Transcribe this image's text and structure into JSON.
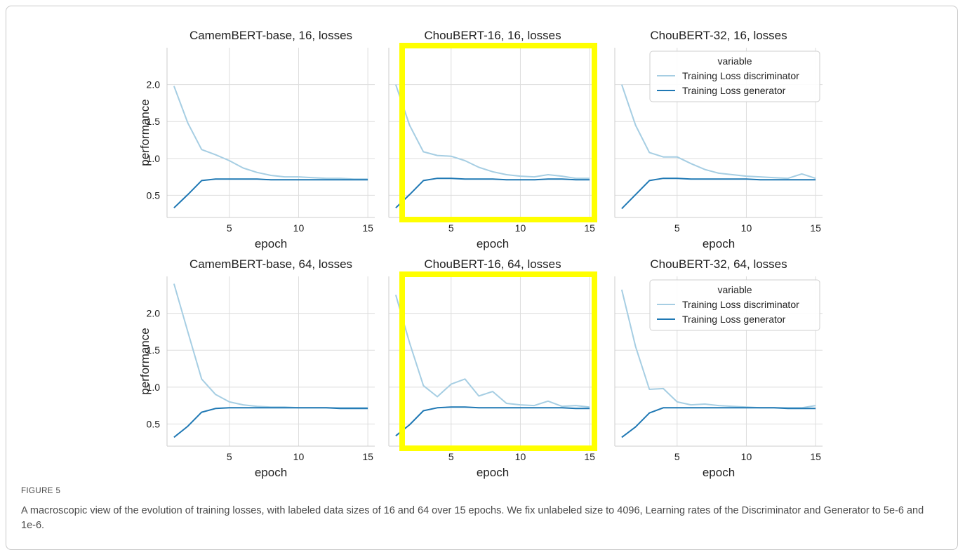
{
  "caption": {
    "label": "FIGURE 5",
    "text": "A macroscopic view of the evolution of training losses, with labeled data sizes of 16 and 64 over 15 epochs. We fix unlabeled size to 4096, Learning rates of the Discriminator and Generator to 5e-6 and 1e-6."
  },
  "colors": {
    "discriminator": "#a6cee3",
    "generator": "#1f78b4",
    "grid": "#dddddd",
    "highlight": "#ffff00"
  },
  "chart_data": [
    {
      "type": "line",
      "title": "CamemBERT-base, 16, losses",
      "xlabel": "epoch",
      "ylabel": "performance",
      "xticks": [
        5,
        10,
        15
      ],
      "yticks": [
        "0.5",
        "1.0",
        "1.5",
        "2.0"
      ],
      "legend": false,
      "highlighted": false,
      "series": [
        {
          "key": "discriminator",
          "x": [
            1,
            2,
            3,
            4,
            5,
            6,
            7,
            8,
            9,
            10,
            11,
            12,
            13,
            14,
            15
          ],
          "values": [
            1.98,
            1.48,
            1.12,
            1.05,
            0.97,
            0.87,
            0.81,
            0.77,
            0.75,
            0.75,
            0.74,
            0.73,
            0.73,
            0.72,
            0.72
          ]
        },
        {
          "key": "generator",
          "x": [
            1,
            2,
            3,
            4,
            5,
            6,
            7,
            8,
            9,
            10,
            11,
            12,
            13,
            14,
            15
          ],
          "values": [
            0.33,
            0.51,
            0.7,
            0.72,
            0.72,
            0.72,
            0.72,
            0.71,
            0.71,
            0.71,
            0.71,
            0.71,
            0.71,
            0.71,
            0.71
          ]
        }
      ]
    },
    {
      "type": "line",
      "title": "ChouBERT-16, 16, losses",
      "xlabel": "epoch",
      "ylabel": "",
      "xticks": [
        5,
        10,
        15
      ],
      "yticks": [],
      "legend": false,
      "highlighted": true,
      "series": [
        {
          "key": "discriminator",
          "x": [
            1,
            2,
            3,
            4,
            5,
            6,
            7,
            8,
            9,
            10,
            11,
            12,
            13,
            14,
            15
          ],
          "values": [
            2.0,
            1.45,
            1.09,
            1.04,
            1.03,
            0.97,
            0.88,
            0.82,
            0.78,
            0.76,
            0.75,
            0.78,
            0.76,
            0.73,
            0.73
          ]
        },
        {
          "key": "generator",
          "x": [
            1,
            2,
            3,
            4,
            5,
            6,
            7,
            8,
            9,
            10,
            11,
            12,
            13,
            14,
            15
          ],
          "values": [
            0.33,
            0.51,
            0.7,
            0.73,
            0.73,
            0.72,
            0.72,
            0.72,
            0.71,
            0.71,
            0.71,
            0.72,
            0.72,
            0.71,
            0.71
          ]
        }
      ]
    },
    {
      "type": "line",
      "title": "ChouBERT-32, 16, losses",
      "xlabel": "epoch",
      "ylabel": "",
      "xticks": [
        5,
        10,
        15
      ],
      "yticks": [],
      "legend": true,
      "legend_position": "top-right",
      "highlighted": false,
      "series": [
        {
          "key": "discriminator",
          "x": [
            1,
            2,
            3,
            4,
            5,
            6,
            7,
            8,
            9,
            10,
            11,
            12,
            13,
            14,
            15
          ],
          "values": [
            2.0,
            1.45,
            1.08,
            1.02,
            1.02,
            0.93,
            0.85,
            0.8,
            0.78,
            0.76,
            0.75,
            0.74,
            0.73,
            0.79,
            0.73
          ]
        },
        {
          "key": "generator",
          "x": [
            1,
            2,
            3,
            4,
            5,
            6,
            7,
            8,
            9,
            10,
            11,
            12,
            13,
            14,
            15
          ],
          "values": [
            0.32,
            0.51,
            0.7,
            0.73,
            0.73,
            0.72,
            0.72,
            0.72,
            0.72,
            0.72,
            0.71,
            0.71,
            0.71,
            0.71,
            0.71
          ]
        }
      ]
    },
    {
      "type": "line",
      "title": "CamemBERT-base, 64, losses",
      "xlabel": "epoch",
      "ylabel": "performance",
      "xticks": [
        5,
        10,
        15
      ],
      "yticks": [
        "0.5",
        "1.0",
        "1.5",
        "2.0"
      ],
      "legend": false,
      "highlighted": false,
      "series": [
        {
          "key": "discriminator",
          "x": [
            1,
            2,
            3,
            4,
            5,
            6,
            7,
            8,
            9,
            10,
            11,
            12,
            13,
            14,
            15
          ],
          "values": [
            2.4,
            1.75,
            1.11,
            0.9,
            0.8,
            0.76,
            0.74,
            0.73,
            0.73,
            0.72,
            0.72,
            0.72,
            0.72,
            0.72,
            0.72
          ]
        },
        {
          "key": "generator",
          "x": [
            1,
            2,
            3,
            4,
            5,
            6,
            7,
            8,
            9,
            10,
            11,
            12,
            13,
            14,
            15
          ],
          "values": [
            0.32,
            0.47,
            0.66,
            0.71,
            0.72,
            0.72,
            0.72,
            0.72,
            0.72,
            0.72,
            0.72,
            0.72,
            0.71,
            0.71,
            0.71
          ]
        }
      ]
    },
    {
      "type": "line",
      "title": "ChouBERT-16, 64, losses",
      "xlabel": "epoch",
      "ylabel": "",
      "xticks": [
        5,
        10,
        15
      ],
      "yticks": [],
      "legend": false,
      "highlighted": true,
      "series": [
        {
          "key": "discriminator",
          "x": [
            1,
            2,
            3,
            4,
            5,
            6,
            7,
            8,
            9,
            10,
            11,
            12,
            13,
            14,
            15
          ],
          "values": [
            2.25,
            1.6,
            1.02,
            0.87,
            1.04,
            1.11,
            0.88,
            0.94,
            0.78,
            0.76,
            0.75,
            0.81,
            0.74,
            0.75,
            0.73
          ]
        },
        {
          "key": "generator",
          "x": [
            1,
            2,
            3,
            4,
            5,
            6,
            7,
            8,
            9,
            10,
            11,
            12,
            13,
            14,
            15
          ],
          "values": [
            0.34,
            0.49,
            0.68,
            0.72,
            0.73,
            0.73,
            0.72,
            0.72,
            0.72,
            0.72,
            0.72,
            0.72,
            0.72,
            0.71,
            0.71
          ]
        }
      ]
    },
    {
      "type": "line",
      "title": "ChouBERT-32, 64, losses",
      "xlabel": "epoch",
      "ylabel": "",
      "xticks": [
        5,
        10,
        15
      ],
      "yticks": [],
      "legend": true,
      "legend_position": "top-right",
      "highlighted": false,
      "series": [
        {
          "key": "discriminator",
          "x": [
            1,
            2,
            3,
            4,
            5,
            6,
            7,
            8,
            9,
            10,
            11,
            12,
            13,
            14,
            15
          ],
          "values": [
            2.32,
            1.55,
            0.97,
            0.98,
            0.8,
            0.76,
            0.77,
            0.75,
            0.74,
            0.73,
            0.72,
            0.72,
            0.72,
            0.72,
            0.75
          ]
        },
        {
          "key": "generator",
          "x": [
            1,
            2,
            3,
            4,
            5,
            6,
            7,
            8,
            9,
            10,
            11,
            12,
            13,
            14,
            15
          ],
          "values": [
            0.32,
            0.46,
            0.65,
            0.72,
            0.72,
            0.72,
            0.72,
            0.72,
            0.72,
            0.72,
            0.72,
            0.72,
            0.71,
            0.71,
            0.71
          ]
        }
      ]
    }
  ],
  "legend": {
    "title": "variable",
    "items": [
      {
        "key": "discriminator",
        "label": "Training Loss discriminator"
      },
      {
        "key": "generator",
        "label": "Training Loss generator"
      }
    ]
  },
  "axis_ranges": {
    "xlim": [
      0.5,
      15.5
    ],
    "ylim": [
      0.2,
      2.5
    ]
  }
}
